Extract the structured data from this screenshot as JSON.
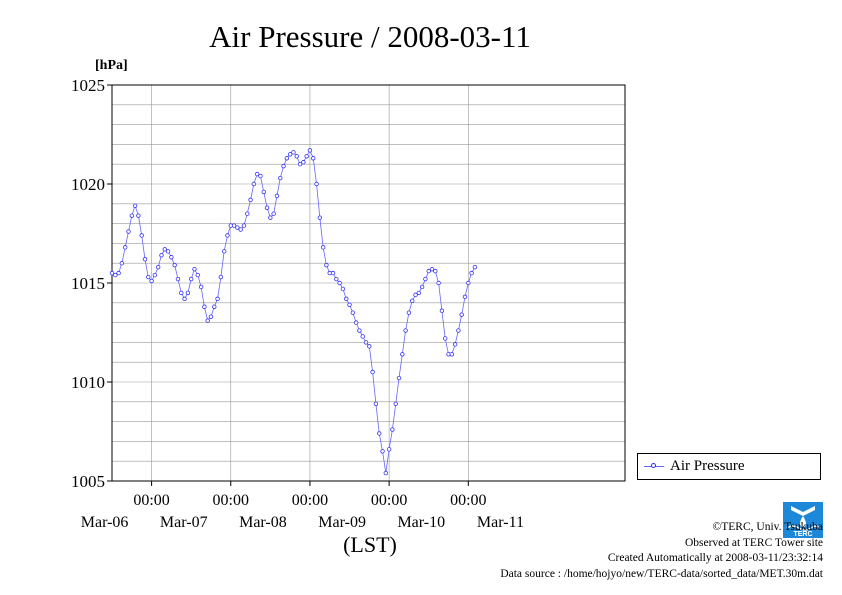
{
  "chart_data": {
    "type": "line",
    "title": "Air Pressure / 2008-03-11",
    "ylabel": "[hPa]",
    "xlabel": "(LST)",
    "ylim": [
      1005,
      1025
    ],
    "yticks": [
      "1025",
      "1020",
      "1015",
      "1010",
      "1005"
    ],
    "ytick_values": [
      1025,
      1020,
      1015,
      1010,
      1005
    ],
    "xlim": [
      "2008-03-05T12:00",
      "2008-03-11T23:30"
    ],
    "xtick_values": [
      "2008-03-06T00:00",
      "2008-03-07T00:00",
      "2008-03-08T00:00",
      "2008-03-09T00:00",
      "2008-03-10T00:00"
    ],
    "xtick_time_labels": [
      "00:00",
      "00:00",
      "00:00",
      "00:00",
      "00:00"
    ],
    "date_labels": [
      "Mar-06",
      "Mar-07",
      "Mar-08",
      "Mar-09",
      "Mar-10",
      "Mar-11"
    ],
    "date_label_positions": [
      "2008-03-06T00:00",
      "2008-03-07T00:00",
      "2008-03-08T00:00",
      "2008-03-09T00:00",
      "2008-03-10T00:00",
      "2008-03-11T00:00"
    ],
    "grid": true,
    "legend_position": "right",
    "series": [
      {
        "name": "Air Pressure",
        "color": "#3333ff",
        "points": [
          [
            "2008-03-05T12:00",
            1015.5
          ],
          [
            "2008-03-05T13:00",
            1015.4
          ],
          [
            "2008-03-05T14:00",
            1015.5
          ],
          [
            "2008-03-05T15:00",
            1016.0
          ],
          [
            "2008-03-05T16:00",
            1016.8
          ],
          [
            "2008-03-05T17:00",
            1017.6
          ],
          [
            "2008-03-05T18:00",
            1018.4
          ],
          [
            "2008-03-05T19:00",
            1018.9
          ],
          [
            "2008-03-05T20:00",
            1018.4
          ],
          [
            "2008-03-05T21:00",
            1017.4
          ],
          [
            "2008-03-05T22:00",
            1016.2
          ],
          [
            "2008-03-05T23:00",
            1015.3
          ],
          [
            "2008-03-06T00:00",
            1015.1
          ],
          [
            "2008-03-06T01:00",
            1015.4
          ],
          [
            "2008-03-06T02:00",
            1015.8
          ],
          [
            "2008-03-06T03:00",
            1016.4
          ],
          [
            "2008-03-06T04:00",
            1016.7
          ],
          [
            "2008-03-06T05:00",
            1016.6
          ],
          [
            "2008-03-06T06:00",
            1016.3
          ],
          [
            "2008-03-06T07:00",
            1015.9
          ],
          [
            "2008-03-06T08:00",
            1015.2
          ],
          [
            "2008-03-06T09:00",
            1014.5
          ],
          [
            "2008-03-06T10:00",
            1014.2
          ],
          [
            "2008-03-06T11:00",
            1014.5
          ],
          [
            "2008-03-06T12:00",
            1015.2
          ],
          [
            "2008-03-06T13:00",
            1015.7
          ],
          [
            "2008-03-06T14:00",
            1015.4
          ],
          [
            "2008-03-06T15:00",
            1014.8
          ],
          [
            "2008-03-06T16:00",
            1013.8
          ],
          [
            "2008-03-06T17:00",
            1013.1
          ],
          [
            "2008-03-06T18:00",
            1013.3
          ],
          [
            "2008-03-06T19:00",
            1013.8
          ],
          [
            "2008-03-06T20:00",
            1014.2
          ],
          [
            "2008-03-06T21:00",
            1015.3
          ],
          [
            "2008-03-06T22:00",
            1016.6
          ],
          [
            "2008-03-06T23:00",
            1017.4
          ],
          [
            "2008-03-07T00:00",
            1017.9
          ],
          [
            "2008-03-07T01:00",
            1017.9
          ],
          [
            "2008-03-07T02:00",
            1017.8
          ],
          [
            "2008-03-07T03:00",
            1017.7
          ],
          [
            "2008-03-07T04:00",
            1017.9
          ],
          [
            "2008-03-07T05:00",
            1018.5
          ],
          [
            "2008-03-07T06:00",
            1019.2
          ],
          [
            "2008-03-07T07:00",
            1020.0
          ],
          [
            "2008-03-07T08:00",
            1020.5
          ],
          [
            "2008-03-07T09:00",
            1020.4
          ],
          [
            "2008-03-07T10:00",
            1019.6
          ],
          [
            "2008-03-07T11:00",
            1018.8
          ],
          [
            "2008-03-07T12:00",
            1018.3
          ],
          [
            "2008-03-07T13:00",
            1018.5
          ],
          [
            "2008-03-07T14:00",
            1019.4
          ],
          [
            "2008-03-07T15:00",
            1020.3
          ],
          [
            "2008-03-07T16:00",
            1020.9
          ],
          [
            "2008-03-07T17:00",
            1021.3
          ],
          [
            "2008-03-07T18:00",
            1021.5
          ],
          [
            "2008-03-07T19:00",
            1021.6
          ],
          [
            "2008-03-07T20:00",
            1021.4
          ],
          [
            "2008-03-07T21:00",
            1021.0
          ],
          [
            "2008-03-07T22:00",
            1021.1
          ],
          [
            "2008-03-07T23:00",
            1021.4
          ],
          [
            "2008-03-08T00:00",
            1021.7
          ],
          [
            "2008-03-08T01:00",
            1021.3
          ],
          [
            "2008-03-08T02:00",
            1020.0
          ],
          [
            "2008-03-08T03:00",
            1018.3
          ],
          [
            "2008-03-08T04:00",
            1016.8
          ],
          [
            "2008-03-08T05:00",
            1015.9
          ],
          [
            "2008-03-08T06:00",
            1015.5
          ],
          [
            "2008-03-08T07:00",
            1015.5
          ],
          [
            "2008-03-08T08:00",
            1015.2
          ],
          [
            "2008-03-08T09:00",
            1015.0
          ],
          [
            "2008-03-08T10:00",
            1014.7
          ],
          [
            "2008-03-08T11:00",
            1014.2
          ],
          [
            "2008-03-08T12:00",
            1013.9
          ],
          [
            "2008-03-08T13:00",
            1013.5
          ],
          [
            "2008-03-08T14:00",
            1013.0
          ],
          [
            "2008-03-08T15:00",
            1012.6
          ],
          [
            "2008-03-08T16:00",
            1012.3
          ],
          [
            "2008-03-08T17:00",
            1012.0
          ],
          [
            "2008-03-08T18:00",
            1011.8
          ],
          [
            "2008-03-08T19:00",
            1010.5
          ],
          [
            "2008-03-08T20:00",
            1008.9
          ],
          [
            "2008-03-08T21:00",
            1007.4
          ],
          [
            "2008-03-08T22:00",
            1006.5
          ],
          [
            "2008-03-08T23:00",
            1005.4
          ],
          [
            "2008-03-09T00:00",
            1006.6
          ],
          [
            "2008-03-09T01:00",
            1007.6
          ],
          [
            "2008-03-09T02:00",
            1008.9
          ],
          [
            "2008-03-09T03:00",
            1010.2
          ],
          [
            "2008-03-09T04:00",
            1011.4
          ],
          [
            "2008-03-09T05:00",
            1012.6
          ],
          [
            "2008-03-09T06:00",
            1013.5
          ],
          [
            "2008-03-09T07:00",
            1014.1
          ],
          [
            "2008-03-09T08:00",
            1014.4
          ],
          [
            "2008-03-09T09:00",
            1014.5
          ],
          [
            "2008-03-09T10:00",
            1014.8
          ],
          [
            "2008-03-09T11:00",
            1015.2
          ],
          [
            "2008-03-09T12:00",
            1015.6
          ],
          [
            "2008-03-09T13:00",
            1015.7
          ],
          [
            "2008-03-09T14:00",
            1015.6
          ],
          [
            "2008-03-09T15:00",
            1015.0
          ],
          [
            "2008-03-09T16:00",
            1013.6
          ],
          [
            "2008-03-09T17:00",
            1012.2
          ],
          [
            "2008-03-09T18:00",
            1011.4
          ],
          [
            "2008-03-09T19:00",
            1011.4
          ],
          [
            "2008-03-09T20:00",
            1011.9
          ],
          [
            "2008-03-09T21:00",
            1012.6
          ],
          [
            "2008-03-09T22:00",
            1013.4
          ],
          [
            "2008-03-09T23:00",
            1014.3
          ],
          [
            "2008-03-10T00:00",
            1015.0
          ],
          [
            "2008-03-10T01:00",
            1015.5
          ],
          [
            "2008-03-10T02:00",
            1015.8
          ]
        ]
      }
    ]
  },
  "legend": {
    "label": "Air Pressure"
  },
  "credits": {
    "copyright": "©TERC, Univ. Tsukuba",
    "observed": "Observed at TERC Tower site",
    "created": "Created Automatically at 2008-03-11/23:32:14",
    "source": "Data source : /home/hojyo/new/TERC-data/sorted_data/MET.30m.dat"
  },
  "logo": {
    "text": "TERC",
    "color": "#1e88d8",
    "name": "terc-logo-icon"
  }
}
